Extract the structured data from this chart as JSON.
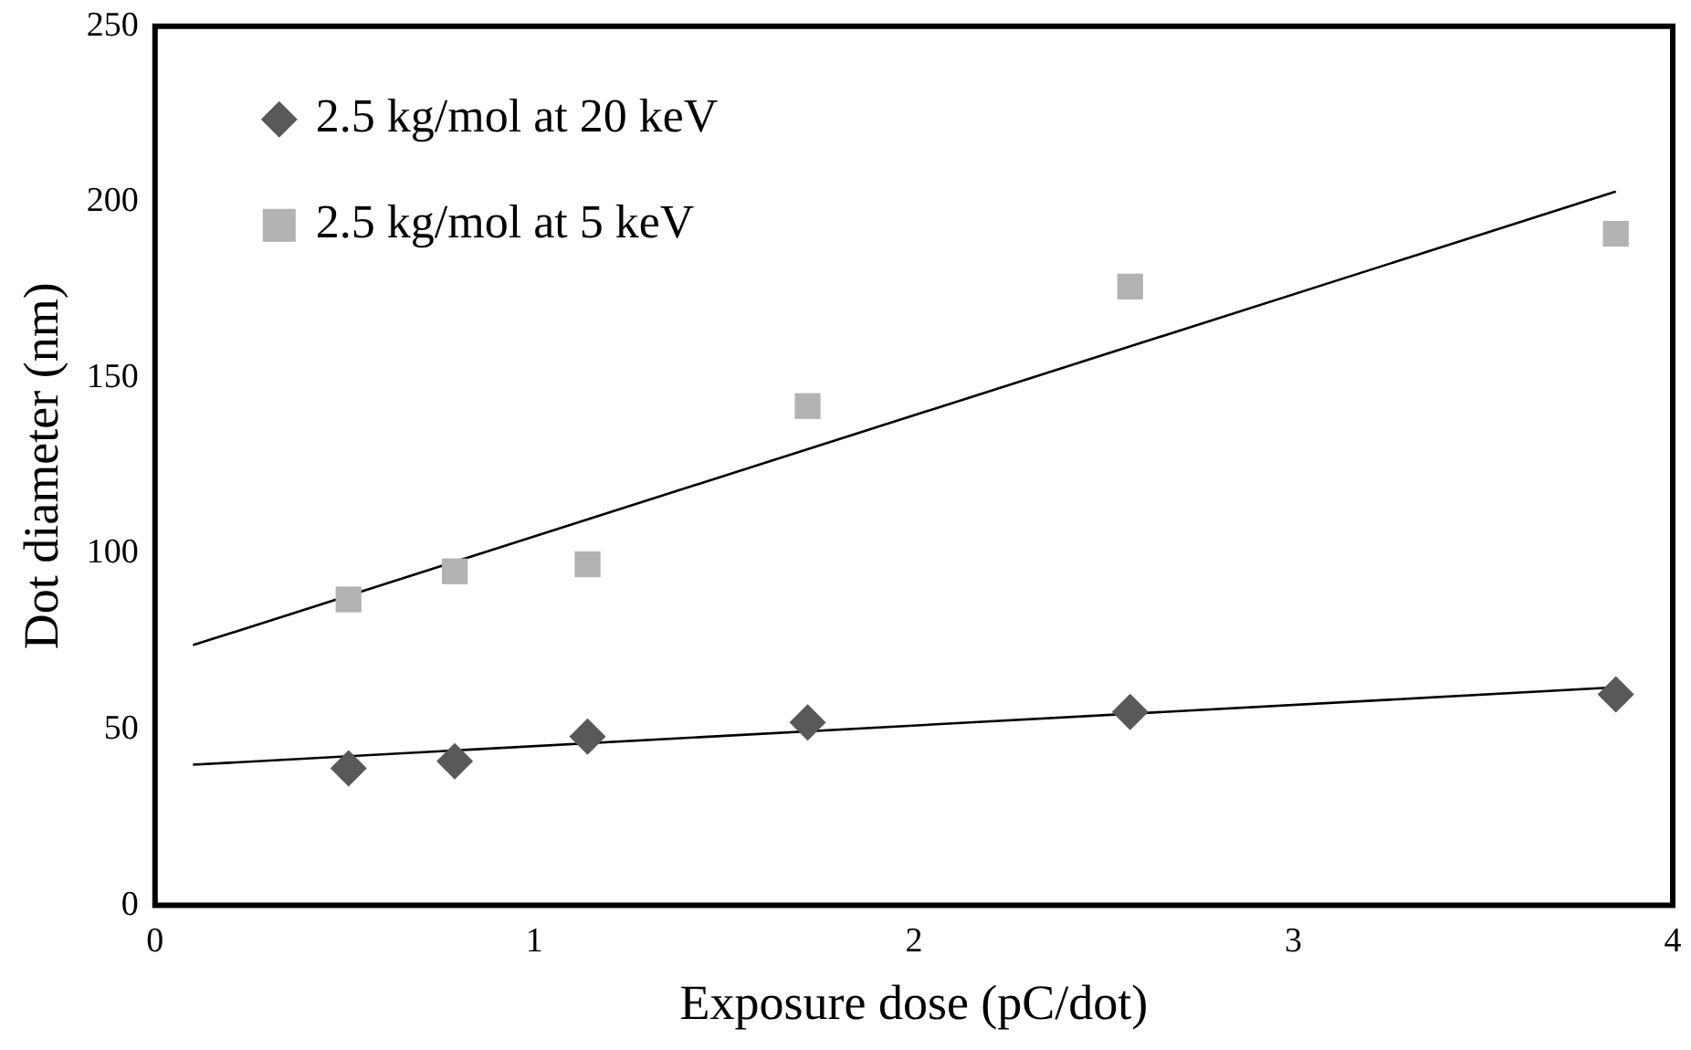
{
  "chart_data": {
    "type": "scatter",
    "xlabel": "Exposure dose (pC/dot)",
    "ylabel": "Dot diameter (nm)",
    "xlim": [
      0,
      4
    ],
    "xticks": [
      0,
      1,
      2,
      3,
      4
    ],
    "ylim": [
      0,
      250
    ],
    "yticks": [
      0,
      50,
      100,
      150,
      200,
      250
    ],
    "grid": false,
    "legend": "top left",
    "series": [
      {
        "name": "2.5 kg/mol at 20 keV",
        "marker": "diamond",
        "color": "#595959",
        "x": [
          0.51,
          0.79,
          1.14,
          1.72,
          2.57,
          3.85
        ],
        "values": [
          39,
          41,
          48,
          52,
          55,
          60
        ]
      },
      {
        "name": "2.5 kg/mol at 5 keV",
        "marker": "square",
        "color": "#b2b2b2",
        "x": [
          0.51,
          0.79,
          1.14,
          1.72,
          2.57,
          3.85
        ],
        "values": [
          87,
          95,
          97,
          142,
          176,
          191
        ]
      },
      {
        "type": "line",
        "marker": "none",
        "color": "#000000",
        "x": [
          0.1,
          3.85
        ],
        "values": [
          40,
          62
        ]
      },
      {
        "type": "line",
        "marker": "none",
        "color": "#000000",
        "x": [
          0.1,
          3.85
        ],
        "values": [
          74,
          203
        ]
      }
    ]
  }
}
